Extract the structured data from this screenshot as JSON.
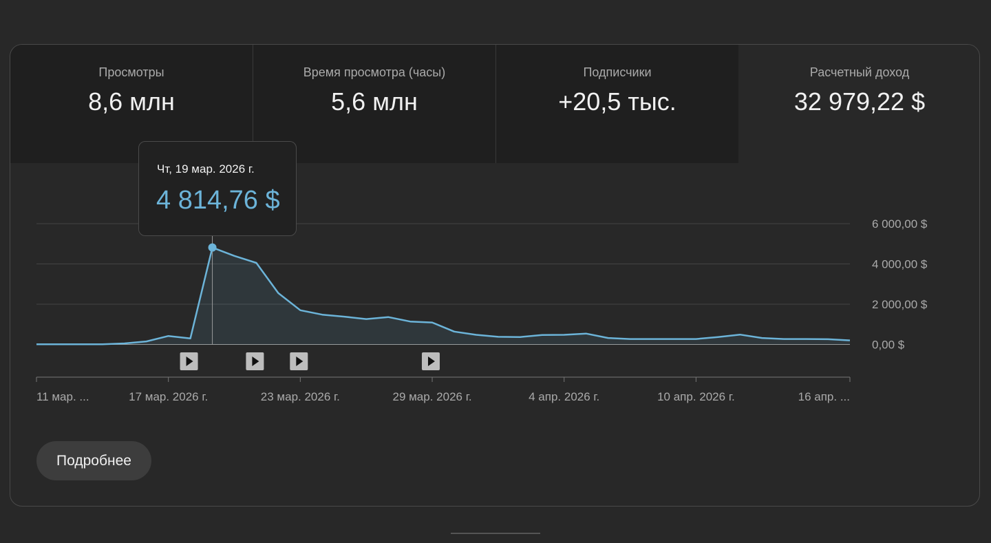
{
  "metrics": [
    {
      "label": "Просмотры",
      "value": "8,6 млн"
    },
    {
      "label": "Время просмотра (часы)",
      "value": "5,6 млн"
    },
    {
      "label": "Подписчики",
      "value": "+20,5 тыс."
    },
    {
      "label": "Расчетный доход",
      "value": "32 979,22 $"
    }
  ],
  "tooltip": {
    "date": "Чт, 19 мар. 2026 г.",
    "value": "4 814,76 $"
  },
  "more_button": "Подробнее",
  "colors": {
    "line": "#6cb4d9",
    "background": "#282828",
    "tile_inactive": "#1f1f1f"
  },
  "chart_data": {
    "type": "area",
    "y_ticks": [
      "6 000,00 $",
      "4 000,00 $",
      "2 000,00 $",
      "0,00 $"
    ],
    "ylim": [
      0,
      6000
    ],
    "x_ticks": [
      "11 мар. ...",
      "17 мар. 2026 г.",
      "23 мар. 2026 г.",
      "29 мар. 2026 г.",
      "4 апр. 2026 г.",
      "10 апр. 2026 г.",
      "16 апр. ..."
    ],
    "x": [
      "11 мар.",
      "12 мар.",
      "13 мар.",
      "14 мар.",
      "15 мар.",
      "16 мар.",
      "17 мар.",
      "18 мар.",
      "19 мар.",
      "20 мар.",
      "21 мар.",
      "22 мар.",
      "23 мар.",
      "24 мар.",
      "25 мар.",
      "26 мар.",
      "27 мар.",
      "28 мар.",
      "29 мар.",
      "30 мар.",
      "31 мар.",
      "1 апр.",
      "2 апр.",
      "3 апр.",
      "4 апр.",
      "5 апр.",
      "6 апр.",
      "7 апр.",
      "8 апр.",
      "9 апр.",
      "10 апр.",
      "11 апр.",
      "12 апр.",
      "13 апр.",
      "14 апр.",
      "15 апр.",
      "16 апр.",
      "17 апр."
    ],
    "values": [
      10,
      10,
      10,
      10,
      50,
      150,
      420,
      300,
      4814.76,
      4400,
      4050,
      2550,
      1700,
      1480,
      1380,
      1260,
      1360,
      1140,
      1090,
      640,
      480,
      380,
      370,
      470,
      480,
      540,
      320,
      270,
      270,
      270,
      270,
      370,
      490,
      320,
      270,
      270,
      260,
      200
    ],
    "highlight_index": 8,
    "video_markers": [
      "19 мар.",
      "22 мар.",
      "24 мар.",
      "30 мар."
    ],
    "grid": true
  }
}
